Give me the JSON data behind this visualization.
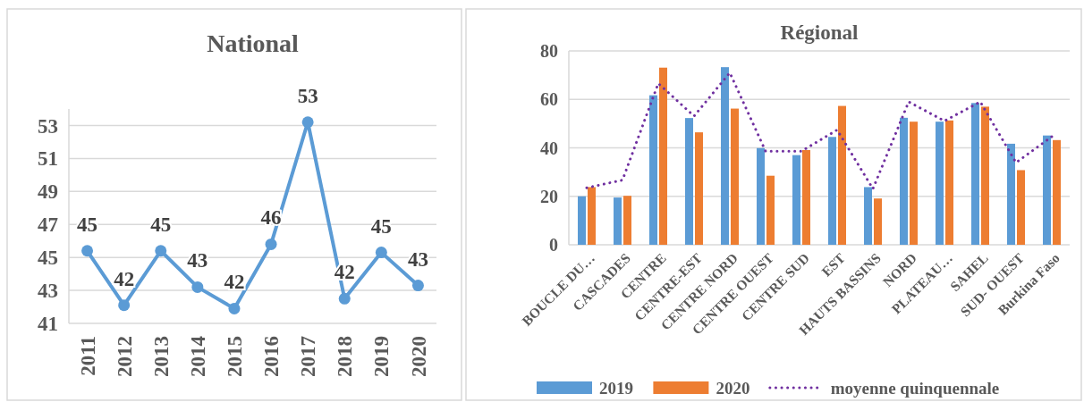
{
  "chart_data": [
    {
      "type": "line",
      "title": "National",
      "categories": [
        "2011",
        "2012",
        "2013",
        "2014",
        "2015",
        "2016",
        "2017",
        "2018",
        "2019",
        "2020"
      ],
      "series": [
        {
          "color": "#5b9bd5",
          "values": [
            45.4,
            42.1,
            45.4,
            43.2,
            41.9,
            45.8,
            53.2,
            42.5,
            45.3,
            43.3
          ],
          "value_labels": [
            "45",
            "42",
            "45",
            "43",
            "42",
            "46",
            "53",
            "42",
            "45",
            "43"
          ]
        }
      ],
      "ylim": [
        41,
        54
      ],
      "yticks": [
        41,
        43,
        45,
        47,
        49,
        51,
        53
      ],
      "grid": "y",
      "marker": "circle",
      "legend": false
    },
    {
      "type": "bar",
      "title": "Régional",
      "categories": [
        "BOUCLE DU…",
        "CASCADES",
        "CENTRE",
        "CENTRE-EST",
        "CENTRE NORD",
        "CENTRE OUEST",
        "CENTRE SUD",
        "EST",
        "HAUTS BASSINS",
        "NORD",
        "PLATEAU…",
        "SAHEL",
        "SUD- OUEST",
        "Burkina Faso"
      ],
      "series": [
        {
          "name": "2019",
          "color": "#5b9bd5",
          "values": [
            20,
            19.5,
            61.7,
            52.3,
            73.3,
            39.9,
            37,
            44.5,
            23.8,
            52.4,
            50.8,
            58.5,
            41.7,
            45.1
          ]
        },
        {
          "name": "2020",
          "color": "#ed7d31",
          "values": [
            23.8,
            20.2,
            73.1,
            46.4,
            56.2,
            28.5,
            39.1,
            57.3,
            19.1,
            50.8,
            51.3,
            57,
            30.8,
            43.2
          ]
        },
        {
          "name": "moyenne quinquennale",
          "type": "line",
          "line_style": "dotted",
          "color": "#7030a0",
          "values": [
            23.5,
            26.7,
            66.6,
            53.1,
            71,
            38.6,
            38.6,
            47.4,
            23.1,
            59,
            51.1,
            59,
            33.9,
            44.6
          ]
        }
      ],
      "ylim": [
        0,
        80
      ],
      "yticks": [
        0,
        20,
        40,
        60,
        80
      ],
      "grid": "y",
      "legend": "bottom"
    }
  ]
}
